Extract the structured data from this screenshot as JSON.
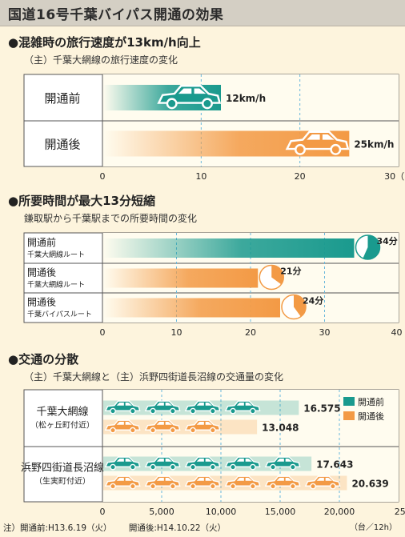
{
  "title": "国道16号千葉バイパス開通の効果",
  "section1": {
    "heading": "●混雑時の旅行速度が13km/h向上",
    "subheading": "（主）千葉大網線の旅行速度の変化"
  },
  "section2": {
    "heading": "●所要時間が最大13分短縮",
    "subheading": "鎌取駅から千葉駅までの所要時間の変化"
  },
  "section3": {
    "heading": "●交通の分散",
    "subheading": "（主）千葉大網線と（主）浜野四街道長沼線の交通量の変化"
  },
  "note": {
    "before": "注）開通前:H13.6.19（火）",
    "after": "開通後:H14.10.22（火）"
  },
  "colors": {
    "before": "#1a9a8e",
    "after": "#f39a45",
    "grid": "#6ab8dc"
  },
  "chart_data": [
    {
      "type": "bar",
      "categories": [
        "開通前",
        "開通後"
      ],
      "values": [
        12,
        25
      ],
      "value_labels": [
        "12km/h",
        "25km/h"
      ],
      "xlim": [
        0,
        30
      ],
      "ticks": [
        "0",
        "10",
        "20",
        "30（km/h）"
      ],
      "tick_values": [
        0,
        10,
        20,
        30
      ],
      "icon": "car-icon"
    },
    {
      "type": "bar",
      "categories": [
        {
          "line1": "開通前",
          "line2": "千葉大網線ルート"
        },
        {
          "line1": "開通後",
          "line2": "千葉大網線ルート"
        },
        {
          "line1": "開通後",
          "line2": "千葉バイパスルート"
        }
      ],
      "values": [
        34,
        21,
        24
      ],
      "value_labels": [
        "34分",
        "21分",
        "24分"
      ],
      "xlim": [
        0,
        40
      ],
      "ticks": [
        "0",
        "10",
        "20",
        "30",
        "40（分）"
      ],
      "tick_values": [
        0,
        10,
        20,
        30,
        40
      ],
      "icon": "clock-icon"
    },
    {
      "type": "bar",
      "categories": [
        {
          "line1": "千葉大網線",
          "line2": "（松ヶ丘町付近）"
        },
        {
          "line1": "浜野四街道長沼線",
          "line2": "（生実町付近）"
        }
      ],
      "series": [
        {
          "name": "開通前",
          "values": [
            16575,
            17643
          ],
          "labels": [
            "16.575",
            "17.643"
          ]
        },
        {
          "name": "開通後",
          "values": [
            13048,
            20639
          ],
          "labels": [
            "13.048",
            "20.639"
          ]
        }
      ],
      "xlim": [
        0,
        25000
      ],
      "ticks": [
        "0",
        "5,000",
        "10,000",
        "15,000",
        "20,000",
        "25,000"
      ],
      "tick_values": [
        0,
        5000,
        10000,
        15000,
        20000,
        25000
      ],
      "unit": "（台／12h）",
      "legend": [
        "開通前",
        "開通後"
      ],
      "legend_position": "top-right",
      "icon": "car-icon"
    }
  ]
}
